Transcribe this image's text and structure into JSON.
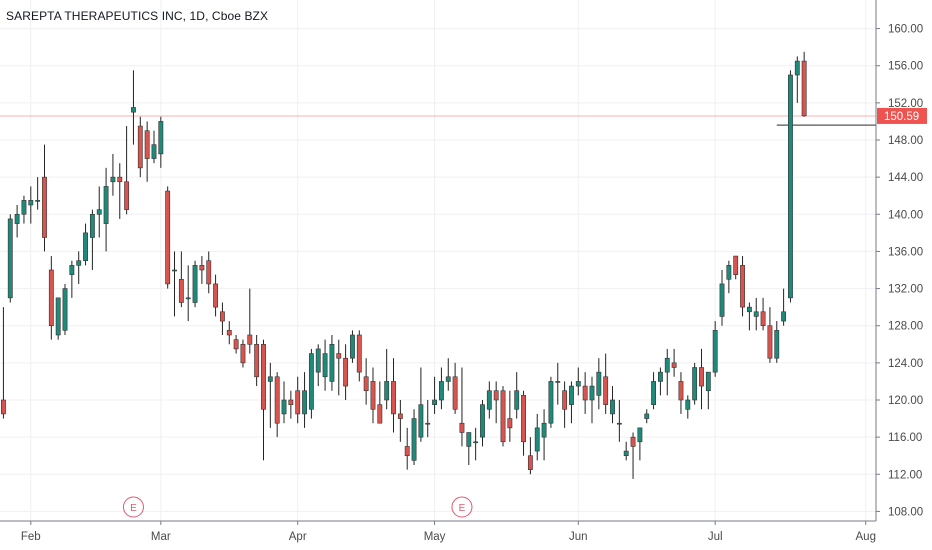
{
  "header": {
    "title": "SAREPTA THERAPEUTICS INC, 1D, Cboe BZX"
  },
  "colors": {
    "up": "#26a69a",
    "down": "#ef5350",
    "up_body": "#1f8a7a",
    "down_body": "#d9534f",
    "wick": "#222222",
    "grid": "#f0f0f3",
    "axis": "#787b86",
    "last_price": "#ef5350",
    "earnings": "#e05a6f"
  },
  "chart_data": {
    "type": "candlestick",
    "title": "SAREPTA THERAPEUTICS INC, 1D, Cboe BZX",
    "ylim": [
      106,
      162
    ],
    "y_ticks": [
      "160.00",
      "156.00",
      "152.00",
      "148.00",
      "144.00",
      "140.00",
      "136.00",
      "132.00",
      "128.00",
      "124.00",
      "120.00",
      "116.00",
      "112.00",
      "108.00"
    ],
    "x_ticks": [
      {
        "label": "Feb",
        "index": 4
      },
      {
        "label": "Mar",
        "index": 23
      },
      {
        "label": "Apr",
        "index": 43
      },
      {
        "label": "May",
        "index": 63
      },
      {
        "label": "Jun",
        "index": 84
      },
      {
        "label": "Jul",
        "index": 104
      },
      {
        "label": "Aug",
        "index": 126
      }
    ],
    "x_range": [
      -0.5,
      127.5
    ],
    "last_price": 150.59,
    "last_price_label": "150.59",
    "gray_line_price": 149.6,
    "earnings_markers": [
      {
        "label": "E",
        "index": 19
      },
      {
        "label": "E",
        "index": 67
      }
    ],
    "candles": [
      [
        120.0,
        130.0,
        118.0,
        118.5
      ],
      [
        131.0,
        140.0,
        130.5,
        139.5
      ],
      [
        139.0,
        141.0,
        137.5,
        140.0
      ],
      [
        140.0,
        142.0,
        139.0,
        141.5
      ],
      [
        141.0,
        143.0,
        139.0,
        141.5
      ],
      [
        141.5,
        144.0,
        140.5,
        141.5
      ],
      [
        144.0,
        147.5,
        136.0,
        137.5
      ],
      [
        134.0,
        135.5,
        126.5,
        128.0
      ],
      [
        127.0,
        131.0,
        126.5,
        131.0
      ],
      [
        127.5,
        132.5,
        127.0,
        132.0
      ],
      [
        133.5,
        135.0,
        131.0,
        134.5
      ],
      [
        134.5,
        136.0,
        132.5,
        135.0
      ],
      [
        135.0,
        139.0,
        134.5,
        138.0
      ],
      [
        137.5,
        140.5,
        134.0,
        140.0
      ],
      [
        140.0,
        143.0,
        137.5,
        140.5
      ],
      [
        139.0,
        145.0,
        136.0,
        143.0
      ],
      [
        143.5,
        146.5,
        142.0,
        144.0
      ],
      [
        144.0,
        145.5,
        139.5,
        143.5
      ],
      [
        143.5,
        149.5,
        140.0,
        140.5
      ],
      [
        151.0,
        155.5,
        147.5,
        151.5
      ],
      [
        149.5,
        150.5,
        144.0,
        145.0
      ],
      [
        149.0,
        150.0,
        143.5,
        146.0
      ],
      [
        146.0,
        149.0,
        145.5,
        147.5
      ],
      [
        146.5,
        150.5,
        145.0,
        150.0
      ],
      [
        142.5,
        143.0,
        132.0,
        132.5
      ],
      [
        134.0,
        136.0,
        129.0,
        134.0
      ],
      [
        133.0,
        136.0,
        130.0,
        130.5
      ],
      [
        131.0,
        134.5,
        128.5,
        131.0
      ],
      [
        130.5,
        135.0,
        130.0,
        134.5
      ],
      [
        134.5,
        135.5,
        132.5,
        134.0
      ],
      [
        135.0,
        136.0,
        131.5,
        132.5
      ],
      [
        132.5,
        133.5,
        129.0,
        130.0
      ],
      [
        129.5,
        130.5,
        127.0,
        128.5
      ],
      [
        127.5,
        128.5,
        126.0,
        127.0
      ],
      [
        126.5,
        127.0,
        125.0,
        125.5
      ],
      [
        126.0,
        126.5,
        123.5,
        124.0
      ],
      [
        127.0,
        132.0,
        125.0,
        126.0
      ],
      [
        126.0,
        127.0,
        121.5,
        122.5
      ],
      [
        126.0,
        126.5,
        113.5,
        119.0
      ],
      [
        122.0,
        124.0,
        117.0,
        122.5
      ],
      [
        122.5,
        123.0,
        116.0,
        117.5
      ],
      [
        118.5,
        122.0,
        117.5,
        120.0
      ],
      [
        120.0,
        121.0,
        118.0,
        119.5
      ],
      [
        121.0,
        122.5,
        117.5,
        118.5
      ],
      [
        118.5,
        123.0,
        117.0,
        121.0
      ],
      [
        119.0,
        125.5,
        118.0,
        125.0
      ],
      [
        123.0,
        126.0,
        121.5,
        125.5
      ],
      [
        122.5,
        126.5,
        121.0,
        125.0
      ],
      [
        122.0,
        127.0,
        121.0,
        126.0
      ],
      [
        125.0,
        126.5,
        120.5,
        124.5
      ],
      [
        124.5,
        126.0,
        120.0,
        121.5
      ],
      [
        124.5,
        127.5,
        124.0,
        127.0
      ],
      [
        127.0,
        127.5,
        122.0,
        123.0
      ],
      [
        122.5,
        124.5,
        119.5,
        121.0
      ],
      [
        122.0,
        123.5,
        117.5,
        119.0
      ],
      [
        119.5,
        122.0,
        117.5,
        117.5
      ],
      [
        120.0,
        125.5,
        119.0,
        122.0
      ],
      [
        122.0,
        124.5,
        116.5,
        118.5
      ],
      [
        118.5,
        120.0,
        115.5,
        118.0
      ],
      [
        115.0,
        117.0,
        112.5,
        114.0
      ],
      [
        113.5,
        119.0,
        113.0,
        118.0
      ],
      [
        116.0,
        123.5,
        115.5,
        119.5
      ],
      [
        117.5,
        120.0,
        116.0,
        117.5
      ],
      [
        119.5,
        122.5,
        118.5,
        120.0
      ],
      [
        120.0,
        123.5,
        119.0,
        122.0
      ],
      [
        122.0,
        124.5,
        121.0,
        122.5
      ],
      [
        122.5,
        124.0,
        118.5,
        119.0
      ],
      [
        117.5,
        123.5,
        115.0,
        116.5
      ],
      [
        115.0,
        116.5,
        113.0,
        116.5
      ],
      [
        115.5,
        117.0,
        113.5,
        115.5
      ],
      [
        116.0,
        120.0,
        115.0,
        119.5
      ],
      [
        119.0,
        122.0,
        118.0,
        121.0
      ],
      [
        121.0,
        122.0,
        117.5,
        120.0
      ],
      [
        121.0,
        121.5,
        115.0,
        115.5
      ],
      [
        118.0,
        121.0,
        115.5,
        117.0
      ],
      [
        119.0,
        123.0,
        118.0,
        121.0
      ],
      [
        120.5,
        121.0,
        114.0,
        115.5
      ],
      [
        114.0,
        116.0,
        112.0,
        112.5
      ],
      [
        114.5,
        118.5,
        113.5,
        117.0
      ],
      [
        116.0,
        119.0,
        113.5,
        117.5
      ],
      [
        117.5,
        122.5,
        117.0,
        122.0
      ],
      [
        122.0,
        124.0,
        119.5,
        122.0
      ],
      [
        121.0,
        122.0,
        117.0,
        119.0
      ],
      [
        119.5,
        122.0,
        117.5,
        121.5
      ],
      [
        121.5,
        123.5,
        120.5,
        122.0
      ],
      [
        121.5,
        123.0,
        118.5,
        120.0
      ],
      [
        120.0,
        122.5,
        117.5,
        121.5
      ],
      [
        120.5,
        124.5,
        119.0,
        123.0
      ],
      [
        122.5,
        125.0,
        118.5,
        119.5
      ],
      [
        118.5,
        121.5,
        117.5,
        120.0
      ],
      [
        117.5,
        120.0,
        115.5,
        117.5
      ],
      [
        114.0,
        115.5,
        113.5,
        114.5
      ],
      [
        116.0,
        116.5,
        111.5,
        115.0
      ],
      [
        115.5,
        117.0,
        113.5,
        117.0
      ],
      [
        118.0,
        119.0,
        117.5,
        118.5
      ],
      [
        119.5,
        123.0,
        119.0,
        122.0
      ],
      [
        122.0,
        123.5,
        120.5,
        123.0
      ],
      [
        123.0,
        125.5,
        120.5,
        124.5
      ],
      [
        124.0,
        125.5,
        122.5,
        123.5
      ],
      [
        122.0,
        123.0,
        118.5,
        120.0
      ],
      [
        119.0,
        120.5,
        118.0,
        120.0
      ],
      [
        120.0,
        124.0,
        119.5,
        123.5
      ],
      [
        123.5,
        125.5,
        119.0,
        121.5
      ],
      [
        121.0,
        123.0,
        119.0,
        123.0
      ],
      [
        123.0,
        128.5,
        122.5,
        127.5
      ],
      [
        129.0,
        134.0,
        128.0,
        132.5
      ],
      [
        133.0,
        135.0,
        131.5,
        134.5
      ],
      [
        135.5,
        135.5,
        133.0,
        133.5
      ],
      [
        134.5,
        135.5,
        129.0,
        130.0
      ],
      [
        129.5,
        130.5,
        127.5,
        130.0
      ],
      [
        129.0,
        131.0,
        127.5,
        129.5
      ],
      [
        129.5,
        131.0,
        127.5,
        128.0
      ],
      [
        128.0,
        130.0,
        124.0,
        124.5
      ],
      [
        124.5,
        128.5,
        124.0,
        127.5
      ],
      [
        128.5,
        132.0,
        128.0,
        129.5
      ],
      [
        131.0,
        155.5,
        130.5,
        155.0
      ],
      [
        155.0,
        157.0,
        152.0,
        156.5
      ],
      [
        156.5,
        157.5,
        150.5,
        150.6
      ]
    ]
  }
}
